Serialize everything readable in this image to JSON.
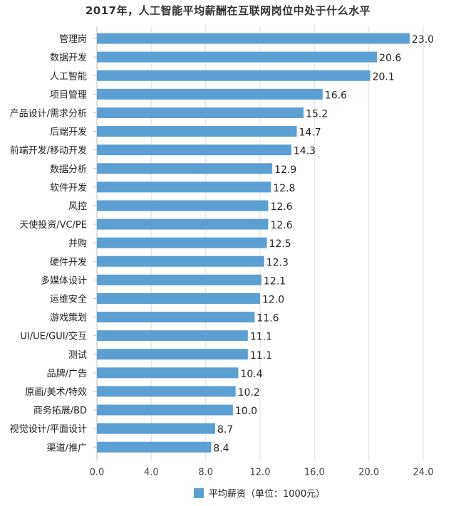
{
  "colors": {
    "bar": "#5b9fd3",
    "grid": "#e2e2e2",
    "axis": "#bfbfbf",
    "text": "#222222"
  },
  "chart_data": {
    "type": "bar",
    "orientation": "horizontal",
    "title": "2017年，人工智能平均薪酬在互联网岗位中处于什么水平",
    "categories": [
      "管理岗",
      "数据开发",
      "人工智能",
      "项目管理",
      "产品设计/需求分析",
      "后端开发",
      "前端开发/移动开发",
      "数据分析",
      "软件开发",
      "风控",
      "天使投资/VC/PE",
      "并购",
      "硬件开发",
      "多媒体设计",
      "运维安全",
      "游戏策划",
      "UI/UE/GUI/交互",
      "测试",
      "品牌/广告",
      "原画/美术/特效",
      "商务拓展/BD",
      "视觉设计/平面设计",
      "渠道/推广"
    ],
    "series": [
      {
        "name": "平均薪资（单位：1000元）",
        "values": [
          23.0,
          20.6,
          20.1,
          16.6,
          15.2,
          14.7,
          14.3,
          12.9,
          12.8,
          12.6,
          12.6,
          12.5,
          12.3,
          12.1,
          12.0,
          11.6,
          11.1,
          11.1,
          10.4,
          10.2,
          10.0,
          8.7,
          8.4
        ]
      }
    ],
    "value_labels": [
      "23.0",
      "20.6",
      "20.1",
      "16.6",
      "15.2",
      "14.7",
      "14.3",
      "12.9",
      "12.8",
      "12.6",
      "12.6",
      "12.5",
      "12.3",
      "12.1",
      "12.0",
      "11.6",
      "11.1",
      "11.1",
      "10.4",
      "10.2",
      "10.0",
      "8.7",
      "8.4"
    ],
    "xlim": [
      0,
      24
    ],
    "x_ticks": [
      "0.0",
      "4.0",
      "8.0",
      "12.0",
      "16.0",
      "20.0",
      "24.0"
    ],
    "x_tick_values": [
      0,
      4,
      8,
      12,
      16,
      20,
      24
    ],
    "grid": true,
    "legend_position": "bottom-center"
  }
}
